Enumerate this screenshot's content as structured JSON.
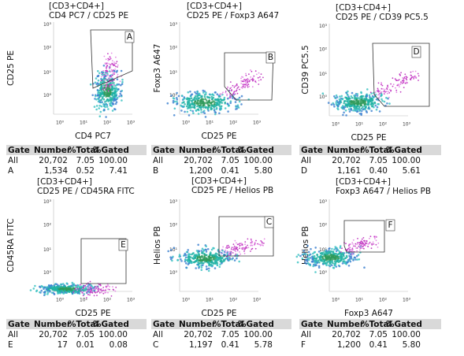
{
  "panels": [
    {
      "population": "[CD3+CD4+]",
      "plot_title": "CD4 PC7 / CD25 PE",
      "x_label": "CD4 PC7",
      "y_label": "CD25 PE",
      "gate": "A",
      "x_ticks": [
        "10⁰",
        "10¹",
        "10²",
        "10³"
      ],
      "y_ticks": [
        "10³",
        "10²",
        "10¹",
        "10⁰"
      ],
      "table": {
        "header": [
          "Gate",
          "Number",
          "%Total",
          "%Gated"
        ],
        "rows": [
          [
            "All",
            "20,702",
            "7.05",
            "100.00"
          ],
          [
            "A",
            "1,534",
            "0.52",
            "7.41"
          ]
        ]
      }
    },
    {
      "population": "[CD3+CD4+]",
      "plot_title": "CD25 PE / Foxp3 A647",
      "x_label": "CD25 PE",
      "y_label": "Foxp3 A647",
      "gate": "B",
      "x_ticks": [
        "10⁰",
        "10¹",
        "10²",
        "10³"
      ],
      "y_ticks": [
        "10³",
        "10²",
        "10¹",
        "10⁰"
      ],
      "table": {
        "header": [
          "Gate",
          "Number",
          "%Total",
          "%Gated"
        ],
        "rows": [
          [
            "All",
            "20,702",
            "7.05",
            "100.00"
          ],
          [
            "B",
            "1,200",
            "0.41",
            "5.80"
          ]
        ]
      }
    },
    {
      "population": "[CD3+CD4+]",
      "plot_title": "CD25 PE / CD39 PC5.5",
      "x_label": "CD25 PE",
      "y_label": "CD39 PC5.5",
      "gate": "D",
      "x_ticks": [
        "10⁰",
        "10¹",
        "10²",
        "10³"
      ],
      "y_ticks": [
        "10³",
        "10²",
        "10¹",
        "10⁰"
      ],
      "table": {
        "header": [
          "Gate",
          "Number",
          "%Total",
          "%Gated"
        ],
        "rows": [
          [
            "All",
            "20,702",
            "7.05",
            "100.00"
          ],
          [
            "D",
            "1,161",
            "0.40",
            "5.61"
          ]
        ]
      }
    },
    {
      "population": "[CD3+CD4+]",
      "plot_title": "CD25 PE / CD45RA FITC",
      "x_label": "CD25 PE",
      "y_label": "CD45RA FITC",
      "gate": "E",
      "x_ticks": [
        "10⁰",
        "10¹",
        "10²",
        "10³"
      ],
      "y_ticks": [
        "10³",
        "10²",
        "10¹",
        "10⁰"
      ],
      "table": {
        "header": [
          "Gate",
          "Number",
          "%Total",
          "%Gated"
        ],
        "rows": [
          [
            "All",
            "20,702",
            "7.05",
            "100.00"
          ],
          [
            "E",
            "17",
            "0.01",
            "0.08"
          ]
        ]
      }
    },
    {
      "population": "[CD3+CD4+]",
      "plot_title": "CD25 PE / Helios PB",
      "x_label": "CD25 PE",
      "y_label": "Helios PB",
      "gate": "C",
      "x_ticks": [
        "10⁰",
        "10¹",
        "10²",
        "10³"
      ],
      "y_ticks": [
        "10³",
        "10²",
        "10¹",
        "10⁰"
      ],
      "table": {
        "header": [
          "Gate",
          "Number",
          "%Total",
          "%Gated"
        ],
        "rows": [
          [
            "All",
            "20,702",
            "7.05",
            "100.00"
          ],
          [
            "C",
            "1,197",
            "0.41",
            "5.78"
          ]
        ]
      }
    },
    {
      "population": "[CD3+CD4+]",
      "plot_title": "Foxp3 A647 / Helios PB",
      "x_label": "Foxp3 A647",
      "y_label": "Helios PB",
      "gate": "F",
      "x_ticks": [
        "10⁰",
        "10¹",
        "10²",
        "10³"
      ],
      "y_ticks": [
        "10³",
        "10²",
        "10¹",
        "10⁰"
      ],
      "table": {
        "header": [
          "Gate",
          "Number",
          "%Total",
          "%Gated"
        ],
        "rows": [
          [
            "All",
            "20,702",
            "7.05",
            "100.00"
          ],
          [
            "F",
            "1,200",
            "0.41",
            "5.80"
          ]
        ]
      }
    }
  ]
}
